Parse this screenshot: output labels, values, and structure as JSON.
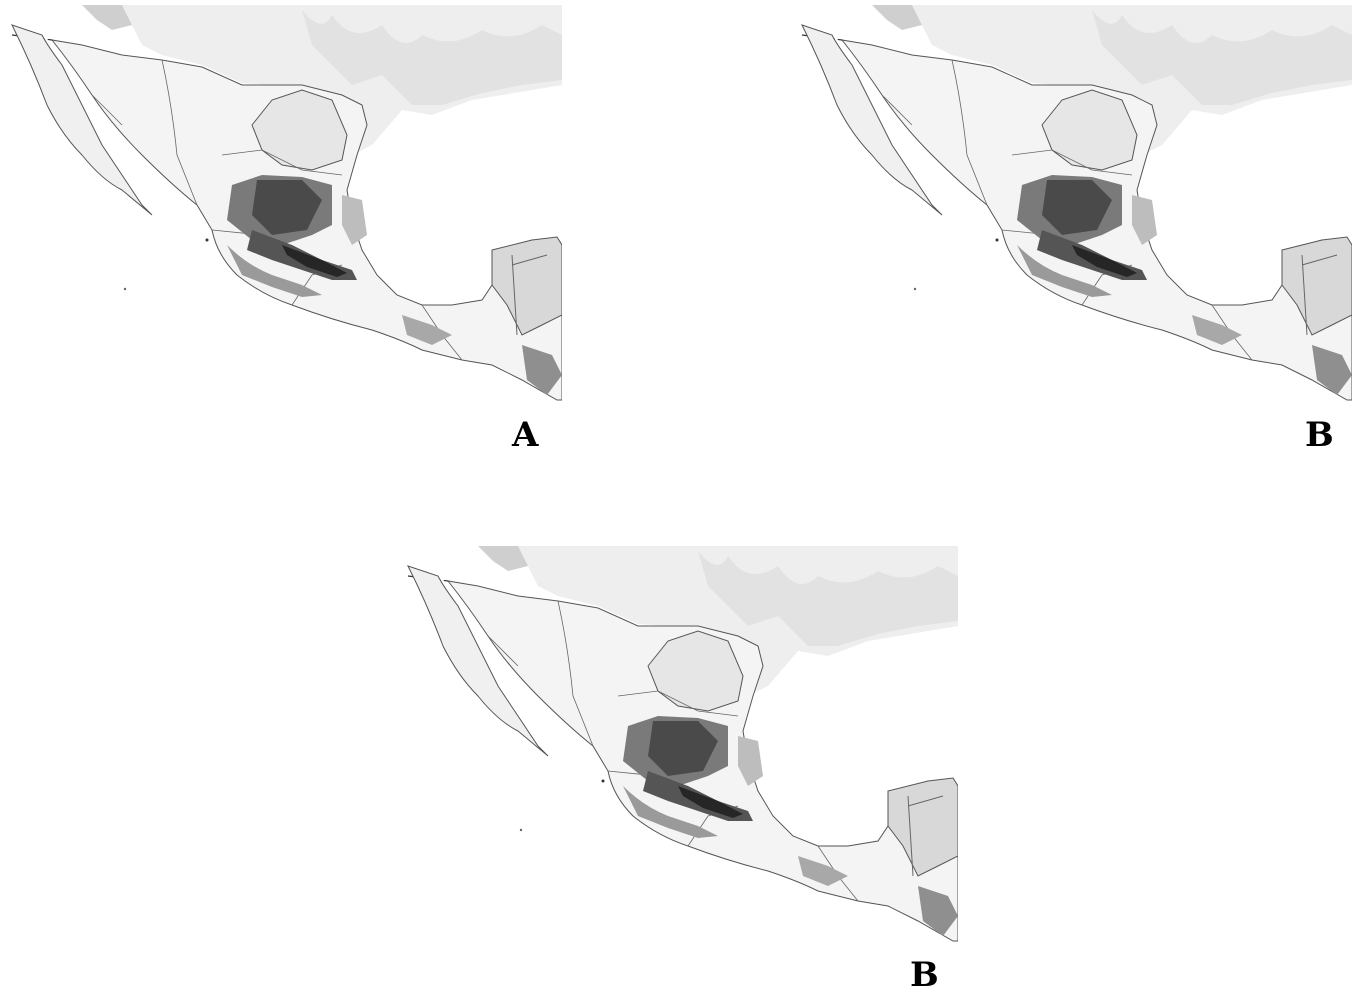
{
  "figure": {
    "panels": [
      {
        "label": "A",
        "name": "map-panel-a"
      },
      {
        "label": "B",
        "name": "map-panel-b"
      },
      {
        "label": "B",
        "name": "map-panel-b-lower"
      }
    ]
  },
  "colors": {
    "background": "#ffffff",
    "land_light": "#f2f2f2",
    "land_mid": "#d6d6d6",
    "suitability_medium": "#7a7a7a",
    "suitability_high": "#3c3c3c",
    "suitability_highest": "#1e1e1e",
    "borders": "#555555"
  }
}
